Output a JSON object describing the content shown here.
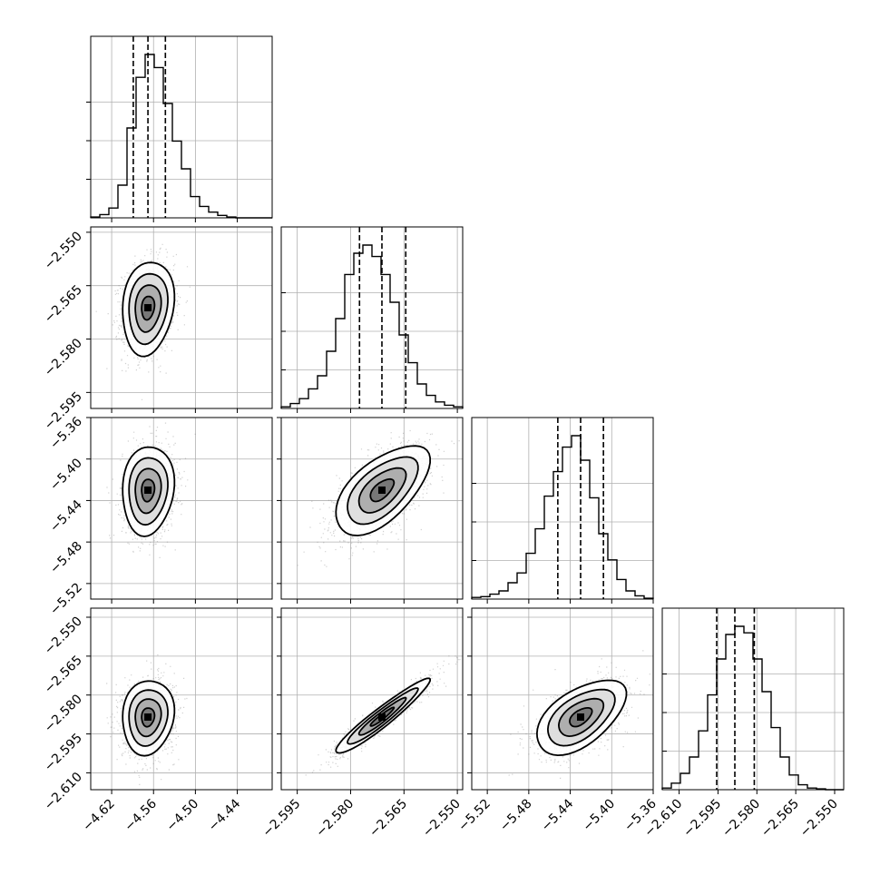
{
  "chart_data": {
    "type": "corner",
    "title": "",
    "dimensions": [
      {
        "range": [
          -4.65,
          -4.39
        ],
        "ticks": [
          -4.62,
          -4.56,
          -4.5,
          -4.44
        ],
        "tick_labels": [
          "−4.62",
          "−4.56",
          "−4.50",
          "−4.44"
        ],
        "quantiles": [
          -4.589,
          -4.568,
          -4.543
        ]
      },
      {
        "range": [
          -2.5995,
          -2.5485
        ],
        "ticks": [
          -2.595,
          -2.58,
          -2.565,
          -2.55
        ],
        "tick_labels": [
          "−2.595",
          "−2.580",
          "−2.565",
          "−2.550"
        ],
        "quantiles": [
          -2.5775,
          -2.5712,
          -2.5645
        ]
      },
      {
        "range": [
          -5.535,
          -5.36
        ],
        "ticks": [
          -5.52,
          -5.48,
          -5.44,
          -5.4,
          -5.36
        ],
        "tick_labels": [
          "−5.52",
          "−5.48",
          "−5.44",
          "−5.40",
          "−5.36"
        ],
        "quantiles": [
          -5.452,
          -5.43,
          -5.408
        ]
      },
      {
        "range": [
          -2.6165,
          -2.5465
        ],
        "ticks": [
          -2.61,
          -2.595,
          -2.58,
          -2.565,
          -2.55
        ],
        "tick_labels": [
          "−2.610",
          "−2.595",
          "−2.580",
          "−2.565",
          "−2.550"
        ],
        "quantiles": [
          -2.5955,
          -2.5885,
          -2.581
        ]
      }
    ],
    "histograms": [
      [
        0.005,
        0.02,
        0.06,
        0.2,
        0.55,
        0.86,
        1.0,
        0.92,
        0.7,
        0.47,
        0.3,
        0.13,
        0.07,
        0.035,
        0.015,
        0.005,
        0,
        0,
        0,
        0
      ],
      [
        0.01,
        0.03,
        0.06,
        0.12,
        0.2,
        0.35,
        0.55,
        0.82,
        0.95,
        1.0,
        0.93,
        0.82,
        0.65,
        0.45,
        0.28,
        0.15,
        0.08,
        0.04,
        0.02,
        0.01
      ],
      [
        0.01,
        0.015,
        0.03,
        0.05,
        0.1,
        0.16,
        0.28,
        0.43,
        0.63,
        0.78,
        0.93,
        1.0,
        0.85,
        0.62,
        0.4,
        0.24,
        0.12,
        0.05,
        0.02,
        0.005
      ],
      [
        0.01,
        0.04,
        0.1,
        0.2,
        0.36,
        0.58,
        0.8,
        0.95,
        1.0,
        0.96,
        0.8,
        0.6,
        0.38,
        0.2,
        0.09,
        0.03,
        0.01,
        0.005,
        0,
        0
      ]
    ],
    "correlations": [
      [
        1,
        0.15,
        0.1,
        0.1
      ],
      [
        0.15,
        1,
        0.6,
        0.95
      ],
      [
        0.1,
        0.6,
        1,
        0.55
      ],
      [
        0.1,
        0.95,
        0.55,
        1
      ]
    ],
    "stddevs": [
      0.0185,
      0.0066,
      0.0215,
      0.0072
    ],
    "contour_levels_sigma": [
      0.5,
      1.0,
      1.5,
      2.0
    ],
    "grid": true,
    "marker_color": "#000000",
    "scatter_color": "#777777",
    "grid_color": "#b0b0b0"
  }
}
